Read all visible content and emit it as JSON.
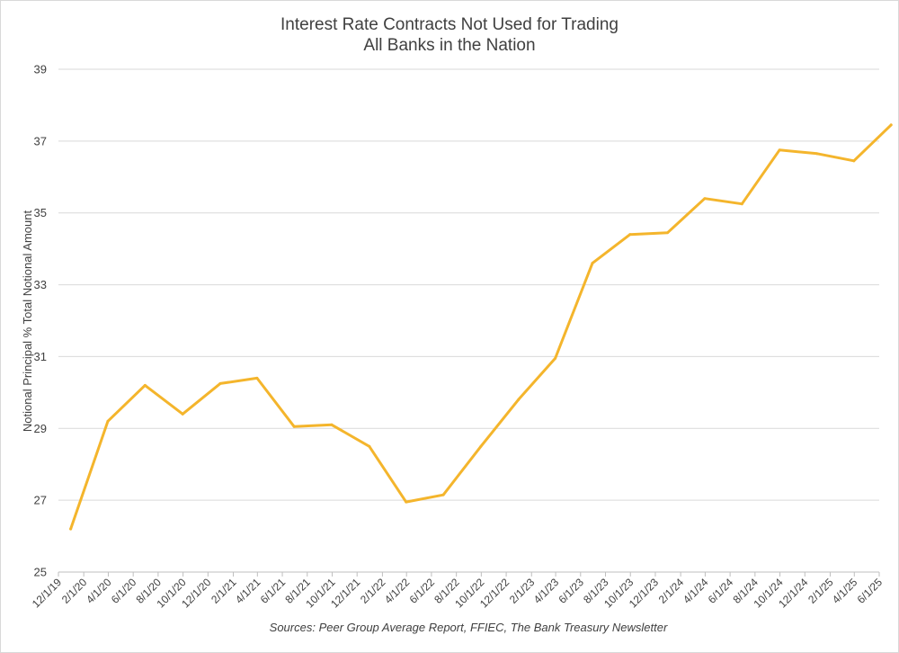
{
  "chart_data": {
    "type": "line",
    "title": [
      "Interest Rate Contracts Not Used for Trading",
      "All Banks in the Nation"
    ],
    "ylabel": "Notional Principal % Total Notional Amount",
    "xlabel": "",
    "source": "Sources: Peer Group Average Report, FFIEC, The Bank Treasury Newsletter",
    "ylim": [
      25,
      39
    ],
    "yticks": [
      25,
      27,
      29,
      31,
      33,
      35,
      37,
      39
    ],
    "grid": true,
    "legend": "none",
    "line_color": "#F4B52C",
    "tick_labels": [
      "12/1/19",
      "2/1/20",
      "4/1/20",
      "6/1/20",
      "8/1/20",
      "10/1/20",
      "12/1/20",
      "2/1/21",
      "4/1/21",
      "6/1/21",
      "8/1/21",
      "10/1/21",
      "12/1/21",
      "2/1/22",
      "4/1/22",
      "6/1/22",
      "8/1/22",
      "10/1/22",
      "12/1/22",
      "2/1/23",
      "4/1/23",
      "6/1/23",
      "8/1/23",
      "10/1/23",
      "12/1/23",
      "2/1/24",
      "4/1/24",
      "6/1/24",
      "8/1/24",
      "10/1/24",
      "12/1/24",
      "2/1/25",
      "4/1/25",
      "6/1/25"
    ],
    "series": [
      {
        "dates": [
          "12/31/19",
          "3/31/20",
          "6/30/20",
          "9/30/20",
          "12/31/20",
          "3/31/21",
          "6/30/21",
          "9/30/21",
          "12/31/21",
          "3/31/22",
          "6/30/22",
          "9/30/22",
          "12/31/22",
          "3/31/23",
          "6/30/23",
          "9/30/23",
          "12/31/23",
          "3/31/24",
          "6/30/24",
          "9/30/24",
          "12/31/24",
          "3/31/25",
          "6/30/25"
        ],
        "values": [
          26.2,
          29.2,
          30.2,
          29.4,
          30.25,
          30.4,
          29.05,
          29.1,
          28.5,
          26.95,
          27.15,
          28.5,
          29.8,
          30.95,
          33.6,
          34.4,
          34.45,
          35.4,
          35.25,
          36.75,
          36.65,
          36.45,
          37.45
        ]
      }
    ]
  }
}
